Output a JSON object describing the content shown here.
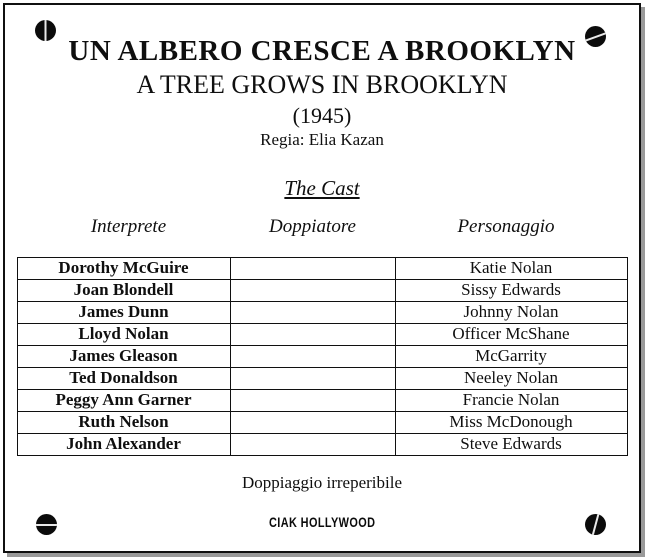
{
  "header": {
    "title_italian": "UN ALBERO CRESCE A BROOKLYN",
    "title_english": "A TREE GROWS IN BROOKLYN",
    "year": "(1945)",
    "director": "Regia: Elia Kazan"
  },
  "cast": {
    "heading": "The Cast",
    "columns": [
      "Interprete",
      "Doppiatore",
      "Personaggio"
    ],
    "rows": [
      {
        "interprete": "Dorothy McGuire",
        "doppiatore": "",
        "personaggio": "Katie Nolan"
      },
      {
        "interprete": "Joan Blondell",
        "doppiatore": "",
        "personaggio": "Sissy Edwards"
      },
      {
        "interprete": "James Dunn",
        "doppiatore": "",
        "personaggio": "Johnny Nolan"
      },
      {
        "interprete": "Lloyd Nolan",
        "doppiatore": "",
        "personaggio": "Officer McShane"
      },
      {
        "interprete": "James Gleason",
        "doppiatore": "",
        "personaggio": "McGarrity"
      },
      {
        "interprete": "Ted Donaldson",
        "doppiatore": "",
        "personaggio": "Neeley Nolan"
      },
      {
        "interprete": "Peggy Ann Garner",
        "doppiatore": "",
        "personaggio": "Francie Nolan"
      },
      {
        "interprete": "Ruth Nelson",
        "doppiatore": "",
        "personaggio": "Miss McDonough"
      },
      {
        "interprete": "John Alexander",
        "doppiatore": "",
        "personaggio": "Steve Edwards"
      }
    ]
  },
  "footer": {
    "note": "Doppiaggio irreperibile",
    "logo": "CIAK HOLLYWOOD"
  },
  "decorations": {
    "screw_icons": [
      "screw-top-left",
      "screw-top-right",
      "screw-bottom-left",
      "screw-bottom-right"
    ]
  },
  "colors": {
    "ink": "#0f0f0f",
    "paper": "#ffffff",
    "border": "#101010",
    "shadow": "#9a9a9a"
  }
}
